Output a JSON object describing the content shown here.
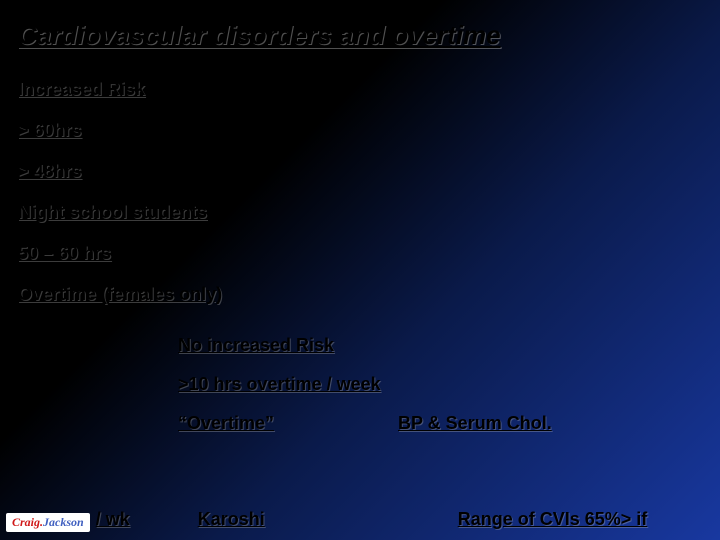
{
  "title": "Cardiovascular disorders and overtime",
  "lines": {
    "increased_risk": "Increased Risk",
    "gt60": "> 60hrs",
    "gt48": "> 48hrs",
    "night_students": "Night school students",
    "range_50_60": "50 – 60 hrs",
    "overtime_females": "Overtime (females only)"
  },
  "indent": {
    "no_increased": "No increased Risk",
    "gt10": ">10 hrs overtime / week",
    "overtime_q": "“Overtime”",
    "bp_serum": "BP & Serum Chol."
  },
  "bottom": {
    "karoshi": "Karoshi",
    "range_cvi": "Range of CVIs 65%> if",
    "wk": "/ wk"
  },
  "badge": {
    "first": "Craig.",
    "second": "Jackson"
  }
}
